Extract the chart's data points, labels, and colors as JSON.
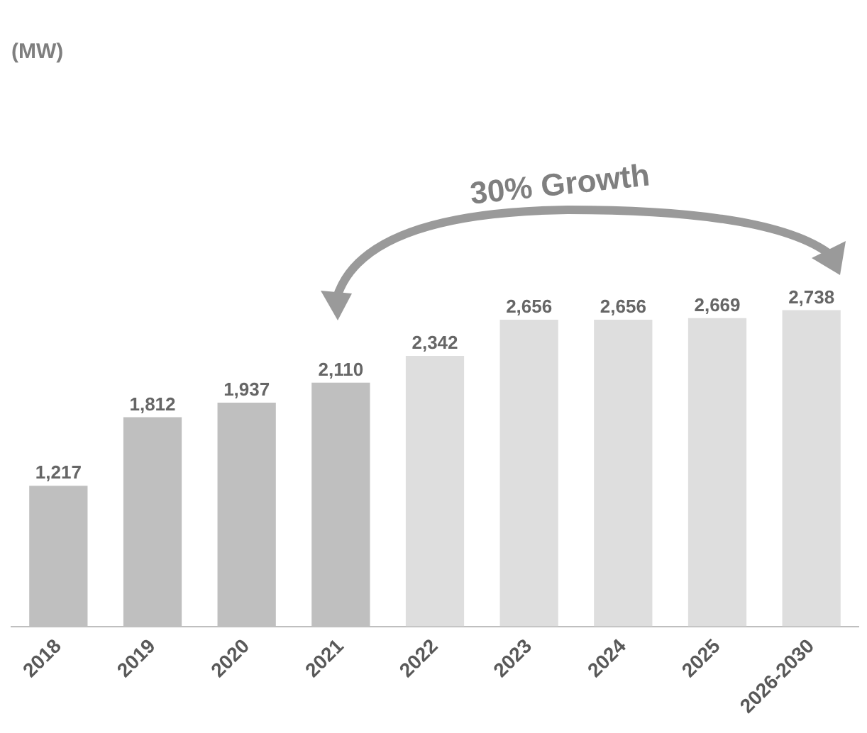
{
  "chart_data": {
    "type": "bar",
    "title": "(MW)",
    "categories": [
      "2018",
      "2019",
      "2020",
      "2021",
      "2022",
      "2023",
      "2024",
      "2025",
      "2026-2030"
    ],
    "values": [
      1217,
      1812,
      1937,
      2110,
      2342,
      2656,
      2656,
      2669,
      2738
    ],
    "colors": [
      "#bfbfbf",
      "#bfbfbf",
      "#bfbfbf",
      "#bfbfbf",
      "#dedede",
      "#dedede",
      "#dedede",
      "#dedede",
      "#dedede"
    ],
    "value_labels": [
      "1,217",
      "1,812",
      "1,937",
      "2,110",
      "2,342",
      "2,656",
      "2,656",
      "2,669",
      "2,738"
    ],
    "tick_labels": "x",
    "grid": false,
    "annotations": [
      "30% Growth"
    ]
  }
}
